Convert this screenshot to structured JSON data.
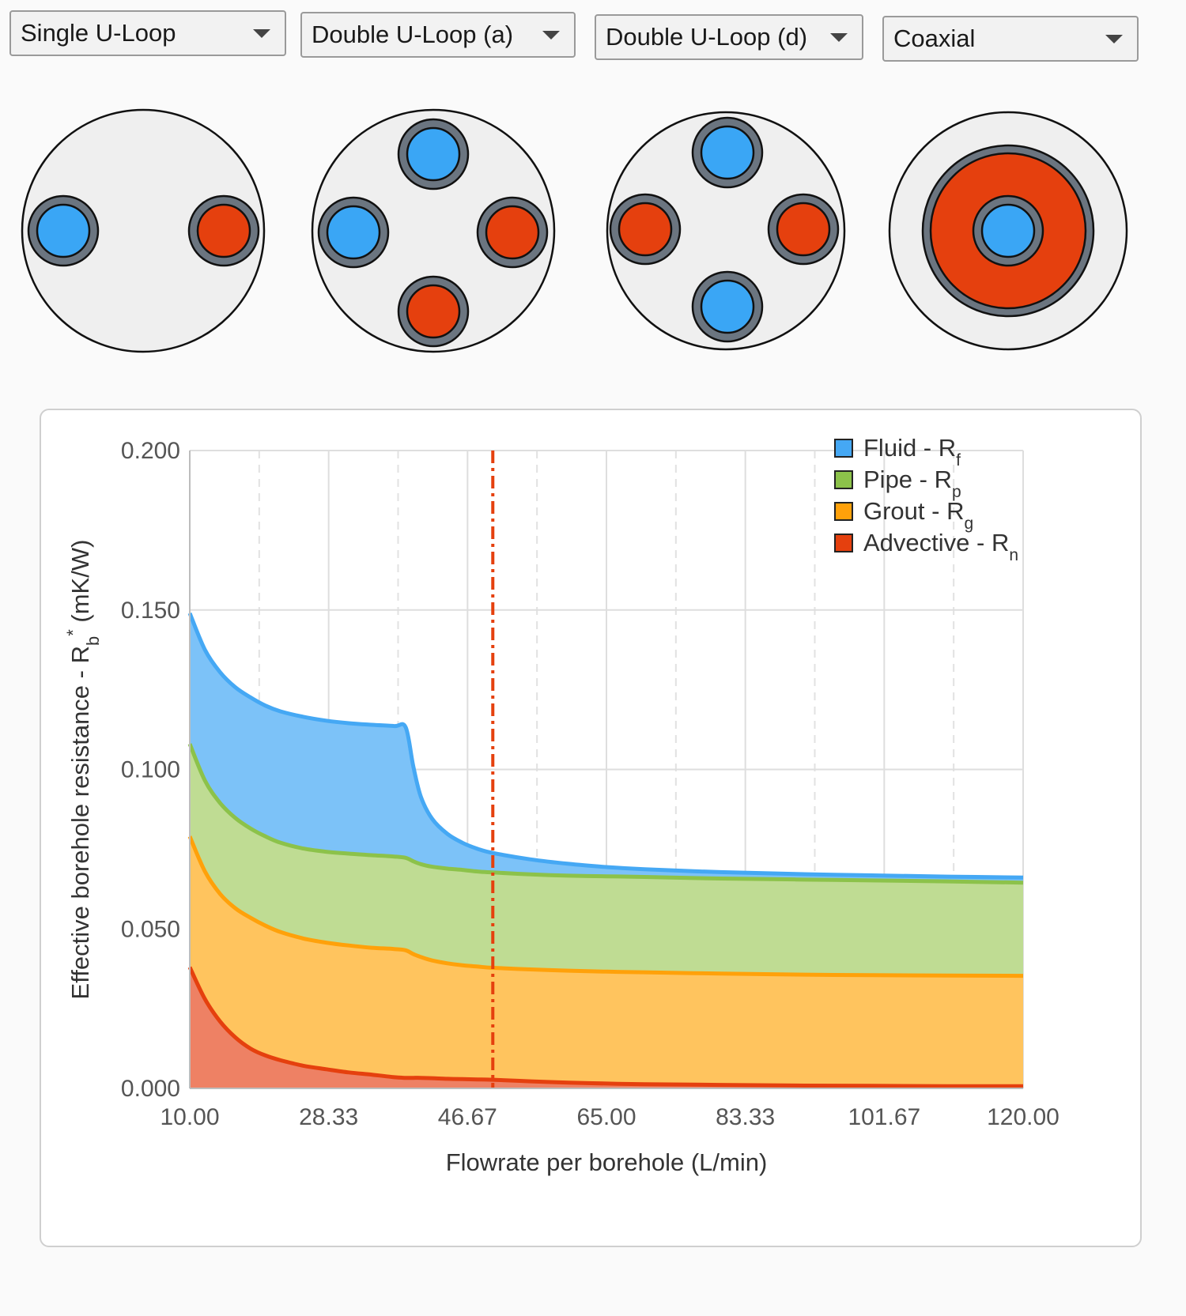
{
  "dropdowns": [
    {
      "selected": "Single U-Loop"
    },
    {
      "selected": "Double U-Loop (a)"
    },
    {
      "selected": "Double U-Loop (d)"
    },
    {
      "selected": "Coaxial"
    }
  ],
  "colors": {
    "cold": "#3aa6f5",
    "hot": "#e5400e",
    "pipe": "#6b7580",
    "grout": "#efefef",
    "fluid": "#45a8f4",
    "pipeR": "#8cc24a",
    "groutR": "#ffa10a",
    "advective": "#e5400e",
    "marker": "#e5400e"
  },
  "chart_data": {
    "type": "area",
    "stacked": true,
    "xlabel": "Flowrate per borehole (L/min)",
    "ylabel": "Effective borehole resistance - Rb* (mK/W)",
    "xlim": [
      10,
      120
    ],
    "ylim": [
      0,
      0.2
    ],
    "x_ticks": [
      "10.00",
      "28.33",
      "46.67",
      "65.00",
      "83.33",
      "101.67",
      "120.00"
    ],
    "y_ticks": [
      "0.000",
      "0.050",
      "0.100",
      "0.150",
      "0.200"
    ],
    "grid": true,
    "legend_position": "top-right",
    "marker_x": 50,
    "x": [
      10,
      12,
      14,
      16,
      18,
      20,
      22,
      25,
      28,
      31,
      34,
      37,
      38.5,
      39.5,
      40.5,
      42,
      44,
      46,
      48,
      50,
      55,
      60,
      65,
      70,
      80,
      90,
      100,
      110,
      120
    ],
    "series": [
      {
        "name": "Advective",
        "subscript": "n",
        "legend_label": "Advective - R",
        "values": [
          0.038,
          0.028,
          0.021,
          0.016,
          0.0125,
          0.0103,
          0.0088,
          0.0071,
          0.006,
          0.005,
          0.0043,
          0.0035,
          0.0033,
          0.0033,
          0.0033,
          0.0032,
          0.003,
          0.0029,
          0.0028,
          0.0027,
          0.0022,
          0.0018,
          0.0015,
          0.0013,
          0.0011,
          0.0009,
          0.0008,
          0.0007,
          0.0007
        ]
      },
      {
        "name": "Grout",
        "subscript": "g",
        "legend_label": "Grout - R",
        "values": [
          0.079,
          0.068,
          0.061,
          0.0565,
          0.0535,
          0.051,
          0.049,
          0.047,
          0.0457,
          0.0448,
          0.0441,
          0.0437,
          0.0433,
          0.0421,
          0.0412,
          0.0401,
          0.0392,
          0.0386,
          0.0382,
          0.0378,
          0.0373,
          0.0369,
          0.0366,
          0.0364,
          0.036,
          0.0357,
          0.0355,
          0.0354,
          0.0353
        ]
      },
      {
        "name": "Pipe",
        "subscript": "p",
        "legend_label": "Pipe - R",
        "values": [
          0.108,
          0.0965,
          0.0895,
          0.0848,
          0.0815,
          0.079,
          0.077,
          0.0752,
          0.0742,
          0.0736,
          0.0731,
          0.0727,
          0.0723,
          0.0712,
          0.0703,
          0.0695,
          0.0689,
          0.0685,
          0.068,
          0.0677,
          0.0671,
          0.0667,
          0.0665,
          0.0663,
          0.0658,
          0.0655,
          0.0652,
          0.0649,
          0.0645
        ]
      },
      {
        "name": "Fluid",
        "subscript": "f",
        "legend_label": "Fluid - R",
        "values": [
          0.149,
          0.1375,
          0.1305,
          0.1258,
          0.1226,
          0.12,
          0.1182,
          0.1165,
          0.1153,
          0.1145,
          0.114,
          0.1136,
          0.1132,
          0.101,
          0.0915,
          0.0845,
          0.0798,
          0.077,
          0.0751,
          0.0738,
          0.0718,
          0.0704,
          0.0694,
          0.0687,
          0.0678,
          0.0672,
          0.0668,
          0.0664,
          0.0661
        ]
      }
    ]
  }
}
